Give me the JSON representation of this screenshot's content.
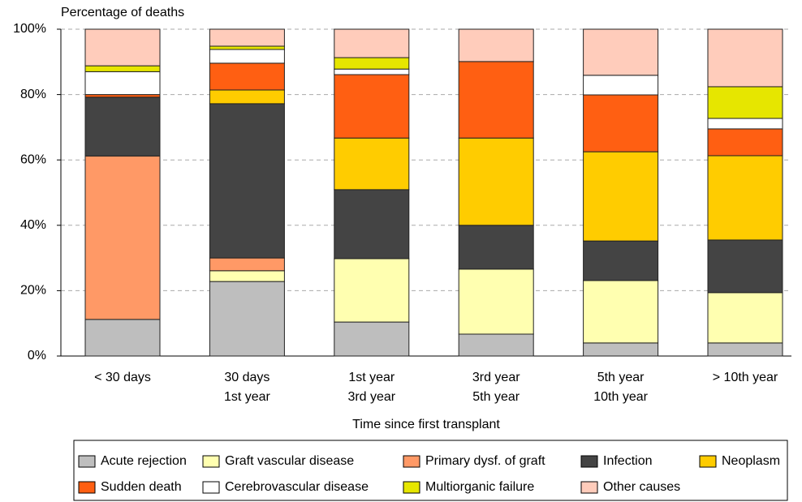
{
  "chart_data": {
    "type": "stacked_bar",
    "y_label": "Percentage of deaths",
    "x_label": "Time since first transplant",
    "categories": [
      [
        "< 30 days"
      ],
      [
        "30 days",
        "1st year"
      ],
      [
        "1st year",
        "3rd year"
      ],
      [
        "3rd year",
        "5th year"
      ],
      [
        "5th year",
        "10th year"
      ],
      [
        "> 10th year"
      ]
    ],
    "series": [
      {
        "name": "Acute rejection",
        "color": "#bebebe",
        "values": [
          11.2,
          22.8,
          10.4,
          6.7,
          4,
          4
        ]
      },
      {
        "name": "Graft vascular disease",
        "color": "#ffffb0",
        "values": [
          0,
          3.3,
          19.4,
          19.9,
          19.1,
          15.4
        ]
      },
      {
        "name": "Primary dysf. of graft",
        "color": "#ff9966",
        "values": [
          50,
          3.9,
          0,
          0,
          0,
          0
        ]
      },
      {
        "name": "Infection",
        "color": "#444444",
        "values": [
          18,
          47.2,
          21.1,
          13.4,
          12.1,
          16.1
        ]
      },
      {
        "name": "Neoplasm",
        "color": "#ffcc00",
        "values": [
          0,
          4.2,
          15.8,
          26.7,
          27.3,
          25.8
        ]
      },
      {
        "name": "Sudden death",
        "color": "#ff5f12",
        "values": [
          0.8,
          8.2,
          19.4,
          23.4,
          17.4,
          8.2
        ]
      },
      {
        "name": "Cerebrovascular disease",
        "color": "#ffffff",
        "values": [
          7,
          4.2,
          1.7,
          0,
          6,
          3.2
        ]
      },
      {
        "name": "Multiorganic failure",
        "color": "#e6e600",
        "values": [
          1.8,
          1,
          3.5,
          0,
          0,
          9.7
        ]
      },
      {
        "name": "Other causes",
        "color": "#ffccbb",
        "values": [
          11.2,
          5.2,
          8.7,
          9.9,
          14.1,
          17.6
        ]
      }
    ],
    "ylim": [
      0,
      100
    ],
    "yticks": [
      {
        "value": 0,
        "label": "0%"
      },
      {
        "value": 20,
        "label": "20%"
      },
      {
        "value": 40,
        "label": "40%"
      },
      {
        "value": 60,
        "label": "60%"
      },
      {
        "value": 80,
        "label": "80%"
      },
      {
        "value": 100,
        "label": "100%"
      }
    ],
    "grid": true,
    "legend": "bottom"
  }
}
